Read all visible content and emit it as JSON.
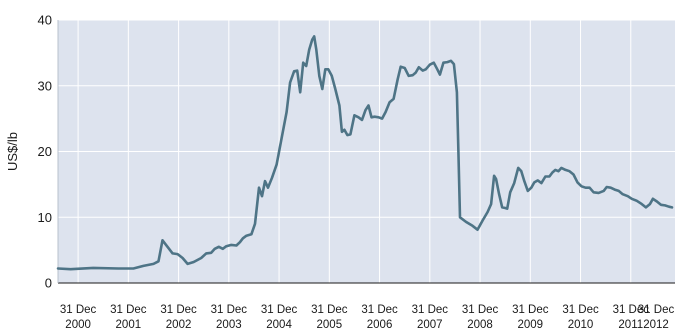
{
  "chart_data": {
    "type": "line",
    "ylabel": "US$/lb",
    "ylim": [
      0,
      40
    ],
    "yticks": [
      0,
      10,
      20,
      30,
      40
    ],
    "xlim": [
      2000.6,
      2012.88
    ],
    "xtick_labels": [
      {
        "line1": "31 Dec",
        "line2": "2000",
        "x": 2001.0
      },
      {
        "line1": "31 Dec",
        "line2": "2001",
        "x": 2002.0
      },
      {
        "line1": "31 Dec",
        "line2": "2002",
        "x": 2003.0
      },
      {
        "line1": "31 Dec",
        "line2": "2003",
        "x": 2004.0
      },
      {
        "line1": "31 Dec",
        "line2": "2004",
        "x": 2005.0
      },
      {
        "line1": "31 Dec",
        "line2": "2005",
        "x": 2006.0
      },
      {
        "line1": "31 Dec",
        "line2": "2006",
        "x": 2007.0
      },
      {
        "line1": "31 Dec",
        "line2": "2007",
        "x": 2008.0
      },
      {
        "line1": "31 Dec",
        "line2": "2008",
        "x": 2009.0
      },
      {
        "line1": "31 Dec",
        "line2": "2009",
        "x": 2010.0
      },
      {
        "line1": "31 Dec",
        "line2": "2010",
        "x": 2011.0
      },
      {
        "line1": "31 Dec",
        "line2": "2011",
        "x": 2012.0
      },
      {
        "line1": "31 Dec",
        "line2": "2012",
        "x": 2013.0
      }
    ],
    "grid": true,
    "colors": {
      "plot_bg": "#dde3ee",
      "grid": "#ffffff",
      "line": "#4e7486"
    },
    "series": [
      {
        "points": [
          [
            2000.6,
            2.2
          ],
          [
            2000.85,
            2.1
          ],
          [
            2001.3,
            2.3
          ],
          [
            2001.8,
            2.2
          ],
          [
            2002.1,
            2.2
          ],
          [
            2002.3,
            2.6
          ],
          [
            2002.5,
            2.9
          ],
          [
            2002.6,
            3.3
          ],
          [
            2002.68,
            6.5
          ],
          [
            2002.78,
            5.5
          ],
          [
            2002.88,
            4.5
          ],
          [
            2002.98,
            4.4
          ],
          [
            2003.08,
            3.8
          ],
          [
            2003.18,
            2.9
          ],
          [
            2003.3,
            3.2
          ],
          [
            2003.45,
            3.8
          ],
          [
            2003.55,
            4.5
          ],
          [
            2003.65,
            4.6
          ],
          [
            2003.72,
            5.2
          ],
          [
            2003.8,
            5.5
          ],
          [
            2003.88,
            5.2
          ],
          [
            2003.95,
            5.6
          ],
          [
            2004.05,
            5.8
          ],
          [
            2004.15,
            5.7
          ],
          [
            2004.22,
            6.2
          ],
          [
            2004.28,
            6.8
          ],
          [
            2004.35,
            7.2
          ],
          [
            2004.45,
            7.4
          ],
          [
            2004.52,
            9.0
          ],
          [
            2004.6,
            14.5
          ],
          [
            2004.66,
            13.2
          ],
          [
            2004.72,
            15.5
          ],
          [
            2004.78,
            14.5
          ],
          [
            2004.86,
            16.0
          ],
          [
            2004.95,
            18.0
          ],
          [
            2005.05,
            22.0
          ],
          [
            2005.15,
            26.0
          ],
          [
            2005.22,
            30.5
          ],
          [
            2005.3,
            32.2
          ],
          [
            2005.36,
            32.3
          ],
          [
            2005.42,
            29.0
          ],
          [
            2005.48,
            33.5
          ],
          [
            2005.54,
            33.0
          ],
          [
            2005.6,
            35.5
          ],
          [
            2005.66,
            37.0
          ],
          [
            2005.7,
            37.5
          ],
          [
            2005.74,
            35.5
          ],
          [
            2005.8,
            31.5
          ],
          [
            2005.86,
            29.5
          ],
          [
            2005.92,
            32.5
          ],
          [
            2005.98,
            32.5
          ],
          [
            2006.05,
            31.5
          ],
          [
            2006.12,
            29.5
          ],
          [
            2006.2,
            27.0
          ],
          [
            2006.25,
            23.0
          ],
          [
            2006.3,
            23.3
          ],
          [
            2006.36,
            22.5
          ],
          [
            2006.42,
            22.6
          ],
          [
            2006.5,
            25.5
          ],
          [
            2006.58,
            25.2
          ],
          [
            2006.65,
            24.8
          ],
          [
            2006.72,
            26.3
          ],
          [
            2006.78,
            27.0
          ],
          [
            2006.84,
            25.2
          ],
          [
            2006.9,
            25.3
          ],
          [
            2006.98,
            25.2
          ],
          [
            2007.05,
            25.0
          ],
          [
            2007.12,
            26.0
          ],
          [
            2007.2,
            27.5
          ],
          [
            2007.28,
            28.0
          ],
          [
            2007.36,
            31.0
          ],
          [
            2007.42,
            32.9
          ],
          [
            2007.5,
            32.7
          ],
          [
            2007.58,
            31.5
          ],
          [
            2007.66,
            31.6
          ],
          [
            2007.72,
            32.0
          ],
          [
            2007.78,
            32.8
          ],
          [
            2007.86,
            32.3
          ],
          [
            2007.92,
            32.5
          ],
          [
            2008.0,
            33.2
          ],
          [
            2008.08,
            33.5
          ],
          [
            2008.15,
            32.5
          ],
          [
            2008.2,
            31.7
          ],
          [
            2008.27,
            33.5
          ],
          [
            2008.35,
            33.6
          ],
          [
            2008.42,
            33.8
          ],
          [
            2008.48,
            33.3
          ],
          [
            2008.54,
            29.0
          ],
          [
            2008.57,
            20.0
          ],
          [
            2008.6,
            10.0
          ],
          [
            2008.72,
            9.3
          ],
          [
            2008.85,
            8.7
          ],
          [
            2008.95,
            8.1
          ],
          [
            2009.05,
            9.5
          ],
          [
            2009.15,
            10.8
          ],
          [
            2009.22,
            12.0
          ],
          [
            2009.28,
            16.3
          ],
          [
            2009.32,
            15.8
          ],
          [
            2009.38,
            13.5
          ],
          [
            2009.44,
            11.5
          ],
          [
            2009.5,
            11.4
          ],
          [
            2009.54,
            11.3
          ],
          [
            2009.6,
            13.8
          ],
          [
            2009.68,
            15.2
          ],
          [
            2009.76,
            17.5
          ],
          [
            2009.82,
            17.0
          ],
          [
            2009.88,
            15.5
          ],
          [
            2009.95,
            14.0
          ],
          [
            2010.02,
            14.5
          ],
          [
            2010.08,
            15.3
          ],
          [
            2010.15,
            15.6
          ],
          [
            2010.22,
            15.2
          ],
          [
            2010.3,
            16.2
          ],
          [
            2010.38,
            16.2
          ],
          [
            2010.44,
            16.8
          ],
          [
            2010.5,
            17.2
          ],
          [
            2010.56,
            17.0
          ],
          [
            2010.62,
            17.5
          ],
          [
            2010.7,
            17.2
          ],
          [
            2010.78,
            17.0
          ],
          [
            2010.86,
            16.5
          ],
          [
            2010.94,
            15.3
          ],
          [
            2011.02,
            14.7
          ],
          [
            2011.1,
            14.5
          ],
          [
            2011.18,
            14.5
          ],
          [
            2011.26,
            13.8
          ],
          [
            2011.36,
            13.7
          ],
          [
            2011.46,
            14.0
          ],
          [
            2011.52,
            14.6
          ],
          [
            2011.6,
            14.5
          ],
          [
            2011.68,
            14.2
          ],
          [
            2011.76,
            14.0
          ],
          [
            2011.84,
            13.5
          ],
          [
            2011.94,
            13.2
          ],
          [
            2012.02,
            12.8
          ],
          [
            2012.12,
            12.5
          ],
          [
            2012.22,
            12.0
          ],
          [
            2012.3,
            11.5
          ],
          [
            2012.38,
            12.0
          ],
          [
            2012.44,
            12.8
          ],
          [
            2012.52,
            12.4
          ],
          [
            2012.6,
            11.9
          ],
          [
            2012.68,
            11.8
          ],
          [
            2012.76,
            11.6
          ],
          [
            2012.82,
            11.5
          ]
        ]
      }
    ]
  }
}
